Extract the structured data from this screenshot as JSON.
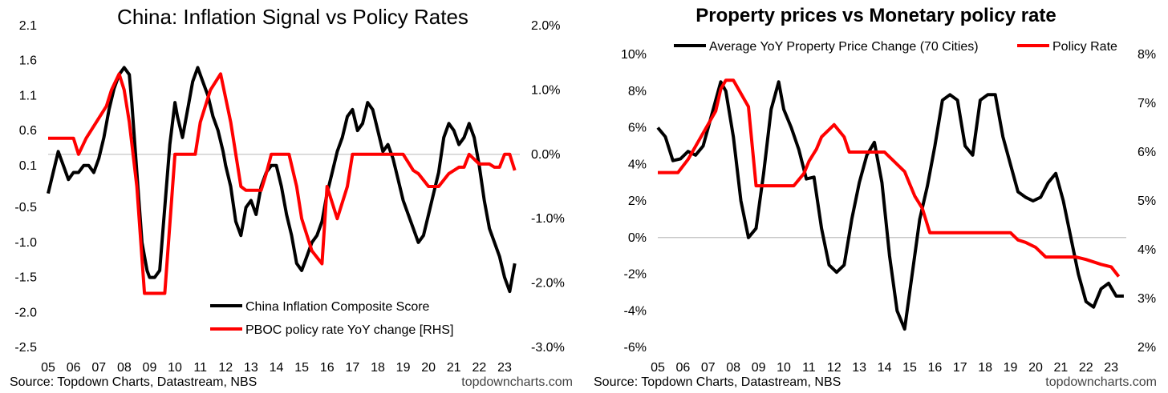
{
  "chart_data": [
    {
      "type": "line",
      "title": "China: Inflation Signal vs Policy Rates",
      "source": "Source: Topdown Charts, Datastream, NBS",
      "brand": "topdowncharts.com",
      "x_ticks": [
        "05",
        "06",
        "07",
        "08",
        "09",
        "10",
        "11",
        "12",
        "13",
        "14",
        "15",
        "16",
        "17",
        "18",
        "19",
        "20",
        "21",
        "22",
        "23"
      ],
      "xlim": [
        2005.0,
        2023.6
      ],
      "y_left": {
        "ticks": [
          "2.1",
          "1.6",
          "1.1",
          "0.6",
          "0.1",
          "-0.5",
          "-1.0",
          "-1.5",
          "-2.0",
          "-2.5"
        ],
        "lim": [
          -2.5,
          2.1
        ]
      },
      "y_right": {
        "ticks": [
          "2.0%",
          "1.0%",
          "0.0%",
          "-1.0%",
          "-2.0%",
          "-3.0%"
        ],
        "values": [
          2.0,
          1.0,
          0.0,
          -1.0,
          -2.0,
          -3.0
        ],
        "lim": [
          -3.0,
          2.0
        ]
      },
      "gridline_at_right": 0.0,
      "series": [
        {
          "name": "China Inflation Composite Score",
          "color": "#000000",
          "axis": "left",
          "x": [
            2005.0,
            2005.2,
            2005.4,
            2005.6,
            2005.8,
            2006.0,
            2006.2,
            2006.4,
            2006.6,
            2006.8,
            2007.0,
            2007.2,
            2007.4,
            2007.6,
            2007.8,
            2008.0,
            2008.2,
            2008.3,
            2008.5,
            2008.7,
            2008.9,
            2009.0,
            2009.2,
            2009.4,
            2009.6,
            2009.8,
            2010.0,
            2010.1,
            2010.3,
            2010.5,
            2010.7,
            2010.9,
            2011.1,
            2011.3,
            2011.5,
            2011.7,
            2011.9,
            2012.0,
            2012.2,
            2012.4,
            2012.6,
            2012.8,
            2013.0,
            2013.2,
            2013.4,
            2013.6,
            2013.8,
            2014.0,
            2014.2,
            2014.4,
            2014.6,
            2014.8,
            2015.0,
            2015.2,
            2015.4,
            2015.6,
            2015.8,
            2016.0,
            2016.2,
            2016.4,
            2016.6,
            2016.8,
            2017.0,
            2017.2,
            2017.4,
            2017.6,
            2017.8,
            2018.0,
            2018.2,
            2018.4,
            2018.6,
            2018.8,
            2019.0,
            2019.2,
            2019.4,
            2019.6,
            2019.8,
            2020.0,
            2020.2,
            2020.4,
            2020.6,
            2020.8,
            2021.0,
            2021.2,
            2021.4,
            2021.6,
            2021.8,
            2022.0,
            2022.2,
            2022.4,
            2022.6,
            2022.8,
            2023.0,
            2023.2,
            2023.4
          ],
          "y": [
            -0.3,
            0.0,
            0.3,
            0.1,
            -0.1,
            0.0,
            0.0,
            0.1,
            0.1,
            0.0,
            0.2,
            0.5,
            0.9,
            1.2,
            1.4,
            1.5,
            1.4,
            1.0,
            0.0,
            -1.0,
            -1.4,
            -1.5,
            -1.5,
            -1.4,
            -0.5,
            0.4,
            1.0,
            0.8,
            0.5,
            0.9,
            1.3,
            1.5,
            1.3,
            1.1,
            0.8,
            0.6,
            0.3,
            0.1,
            -0.2,
            -0.7,
            -0.9,
            -0.5,
            -0.4,
            -0.6,
            -0.2,
            0.0,
            0.1,
            0.1,
            -0.2,
            -0.6,
            -0.9,
            -1.3,
            -1.4,
            -1.2,
            -1.0,
            -0.9,
            -0.7,
            -0.3,
            0.0,
            0.3,
            0.5,
            0.8,
            0.9,
            0.6,
            0.7,
            1.0,
            0.9,
            0.6,
            0.3,
            0.4,
            0.2,
            -0.1,
            -0.4,
            -0.6,
            -0.8,
            -1.0,
            -0.9,
            -0.6,
            -0.3,
            0.0,
            0.5,
            0.7,
            0.6,
            0.4,
            0.5,
            0.7,
            0.5,
            0.1,
            -0.4,
            -0.8,
            -1.0,
            -1.2,
            -1.5,
            -1.7,
            -1.3
          ]
        },
        {
          "name": "PBOC policy rate YoY change [RHS]",
          "color": "#ff0000",
          "axis": "right",
          "x": [
            2005.0,
            2006.0,
            2006.2,
            2006.5,
            2006.9,
            2007.3,
            2007.5,
            2007.8,
            2008.0,
            2008.2,
            2008.5,
            2008.8,
            2009.0,
            2009.6,
            2010.0,
            2010.8,
            2011.0,
            2011.4,
            2011.8,
            2012.2,
            2012.6,
            2012.8,
            2013.4,
            2013.6,
            2013.8,
            2014.5,
            2014.8,
            2015.0,
            2015.4,
            2015.8,
            2016.0,
            2016.4,
            2016.8,
            2017.0,
            2019.0,
            2019.4,
            2019.6,
            2020.0,
            2020.4,
            2020.8,
            2021.2,
            2021.4,
            2021.6,
            2022.0,
            2022.4,
            2022.6,
            2022.8,
            2023.0,
            2023.2,
            2023.4
          ],
          "y": [
            0.25,
            0.25,
            0.0,
            0.25,
            0.5,
            0.75,
            1.0,
            1.25,
            1.0,
            0.5,
            -0.5,
            -2.16,
            -2.16,
            -2.16,
            0.0,
            0.0,
            0.5,
            1.0,
            1.25,
            0.5,
            -0.5,
            -0.56,
            -0.56,
            -0.3,
            0.0,
            0.0,
            -0.5,
            -1.0,
            -1.5,
            -1.7,
            -0.5,
            -1.0,
            -0.5,
            0.0,
            0.0,
            -0.25,
            -0.3,
            -0.5,
            -0.5,
            -0.3,
            -0.2,
            -0.2,
            0.0,
            -0.15,
            -0.15,
            -0.2,
            -0.2,
            -0.0,
            -0.0,
            -0.25
          ]
        }
      ],
      "legend_position": "bottom-right"
    },
    {
      "type": "line",
      "title": "Property prices vs Monetary policy rate",
      "source": "Source: Topdown Charts, Datastream, NBS",
      "brand": "topdowncharts.com",
      "x_ticks": [
        "05",
        "06",
        "07",
        "08",
        "09",
        "10",
        "11",
        "12",
        "13",
        "14",
        "15",
        "16",
        "17",
        "18",
        "19",
        "20",
        "21",
        "22",
        "23"
      ],
      "xlim": [
        2005.0,
        2023.6
      ],
      "y_left": {
        "ticks": [
          "10%",
          "8%",
          "6%",
          "4%",
          "2%",
          "0%",
          "-2%",
          "-4%",
          "-6%"
        ],
        "values": [
          10,
          8,
          6,
          4,
          2,
          0,
          -2,
          -4,
          -6
        ],
        "lim": [
          -6,
          10
        ]
      },
      "y_right": {
        "ticks": [
          "8%",
          "7%",
          "6%",
          "5%",
          "4%",
          "3%",
          "2%"
        ],
        "values": [
          8,
          7,
          6,
          5,
          4,
          3,
          2
        ],
        "lim": [
          2,
          8
        ]
      },
      "gridline_at_left": 0,
      "series": [
        {
          "name": "Average YoY Property Price Change (70 Cities)",
          "color": "#000000",
          "axis": "left",
          "x": [
            2005.0,
            2005.3,
            2005.6,
            2005.9,
            2006.2,
            2006.5,
            2006.8,
            2007.0,
            2007.3,
            2007.5,
            2007.7,
            2008.0,
            2008.3,
            2008.6,
            2008.9,
            2009.2,
            2009.5,
            2009.8,
            2010.0,
            2010.3,
            2010.6,
            2010.9,
            2011.2,
            2011.5,
            2011.8,
            2012.1,
            2012.4,
            2012.7,
            2013.0,
            2013.3,
            2013.6,
            2013.9,
            2014.2,
            2014.5,
            2014.8,
            2015.1,
            2015.4,
            2015.7,
            2016.0,
            2016.3,
            2016.6,
            2016.9,
            2017.2,
            2017.5,
            2017.8,
            2018.1,
            2018.4,
            2018.7,
            2019.0,
            2019.3,
            2019.6,
            2019.9,
            2020.2,
            2020.5,
            2020.8,
            2021.1,
            2021.4,
            2021.7,
            2022.0,
            2022.3,
            2022.6,
            2022.9,
            2023.2,
            2023.5
          ],
          "y": [
            6.0,
            5.5,
            4.2,
            4.3,
            4.7,
            4.5,
            5.0,
            6.0,
            7.5,
            8.5,
            8.0,
            5.5,
            2.0,
            0.0,
            0.5,
            3.5,
            7.0,
            8.5,
            7.0,
            6.0,
            4.8,
            3.2,
            3.3,
            0.5,
            -1.5,
            -1.9,
            -1.5,
            1.0,
            3.0,
            4.5,
            5.2,
            3.0,
            -1.0,
            -4.0,
            -5.0,
            -2.0,
            1.0,
            2.8,
            5.0,
            7.5,
            7.8,
            7.5,
            5.0,
            4.5,
            7.5,
            7.8,
            7.8,
            5.5,
            4.0,
            2.5,
            2.2,
            2.0,
            2.2,
            3.0,
            3.5,
            2.0,
            0.0,
            -2.0,
            -3.5,
            -3.8,
            -2.8,
            -2.5,
            -3.2,
            -3.2
          ]
        },
        {
          "name": "Policy Rate",
          "color": "#ff0000",
          "axis": "right",
          "x": [
            2005.0,
            2005.8,
            2006.2,
            2006.5,
            2006.8,
            2007.0,
            2007.3,
            2007.5,
            2007.7,
            2008.0,
            2008.6,
            2008.9,
            2010.4,
            2010.8,
            2011.0,
            2011.3,
            2011.5,
            2012.0,
            2012.4,
            2012.6,
            2014.0,
            2014.8,
            2015.0,
            2015.2,
            2015.5,
            2015.8,
            2019.0,
            2019.3,
            2019.6,
            2020.0,
            2020.4,
            2021.6,
            2022.0,
            2022.6,
            2023.0,
            2023.3
          ],
          "y": [
            5.58,
            5.58,
            5.85,
            6.12,
            6.39,
            6.57,
            6.84,
            7.29,
            7.47,
            7.47,
            6.93,
            5.31,
            5.31,
            5.56,
            5.81,
            6.06,
            6.31,
            6.56,
            6.31,
            6.0,
            6.0,
            5.6,
            5.35,
            5.1,
            4.85,
            4.35,
            4.35,
            4.2,
            4.15,
            4.05,
            3.85,
            3.85,
            3.8,
            3.7,
            3.65,
            3.45
          ]
        }
      ],
      "legend_position": "top"
    }
  ]
}
